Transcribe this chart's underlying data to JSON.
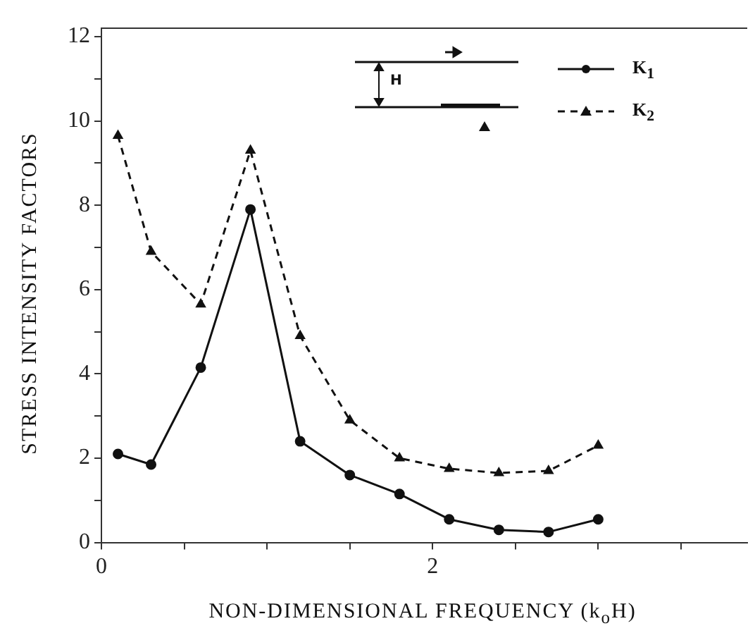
{
  "chart_data": {
    "type": "line",
    "xlabel": "NON-DIMENSIONAL FREQUENCY (k$_{o}$H)",
    "ylabel": "STRESS INTENSITY FACTORS",
    "x": [
      0.1,
      0.3,
      0.6,
      0.9,
      1.2,
      1.5,
      1.8,
      2.1,
      2.4,
      2.7,
      3.0
    ],
    "series": [
      {
        "name": "K$_{1}$",
        "color": "#111111",
        "marker": "circle",
        "line_style": "solid",
        "values": [
          2.1,
          1.85,
          4.15,
          7.9,
          2.4,
          1.6,
          1.15,
          0.55,
          0.3,
          0.25,
          0.55
        ]
      },
      {
        "name": "K$_{2}$",
        "color": "#111111",
        "marker": "triangle",
        "line_style": "dashed",
        "values": [
          9.65,
          6.9,
          5.65,
          9.3,
          4.9,
          2.9,
          2.0,
          1.75,
          1.65,
          1.7,
          2.3
        ]
      }
    ],
    "xlim": [
      0,
      3.9
    ],
    "xticks": [
      0,
      {
        "value": 0.5,
        "label": null
      },
      {
        "value": 1,
        "label": null
      },
      {
        "value": 1.5,
        "label": null
      },
      2,
      {
        "value": 2.5,
        "label": null
      },
      {
        "value": 3,
        "label": null
      },
      {
        "value": 3.5,
        "label": null
      }
    ],
    "ylim": [
      0,
      12.2
    ],
    "yticks": [
      0,
      {
        "value": 1,
        "label": null
      },
      2,
      {
        "value": 3,
        "label": null
      },
      4,
      {
        "value": 5,
        "label": null
      },
      6,
      {
        "value": 7,
        "label": null
      },
      8,
      {
        "value": 9,
        "label": null
      },
      10,
      {
        "value": 11,
        "label": null
      },
      12
    ],
    "grid": false,
    "legend": "top right",
    "annotations": [
      "H"
    ]
  }
}
